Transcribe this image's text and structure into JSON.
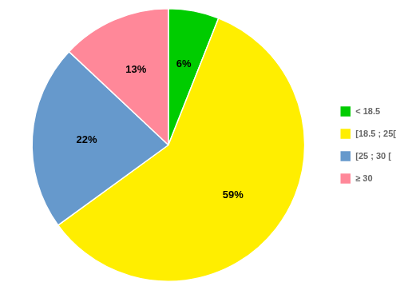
{
  "chart_data": {
    "type": "pie",
    "categories": [
      "< 18.5",
      "[18.5 ; 25[",
      "[25 ; 30 [",
      "≥ 30"
    ],
    "values": [
      6,
      59,
      22,
      13
    ],
    "value_labels": [
      "6%",
      "59%",
      "22%",
      "13%"
    ],
    "colors": [
      "#00cc00",
      "#ffee00",
      "#6699cc",
      "#ff8899"
    ],
    "data_labels": true,
    "legend": "right"
  }
}
